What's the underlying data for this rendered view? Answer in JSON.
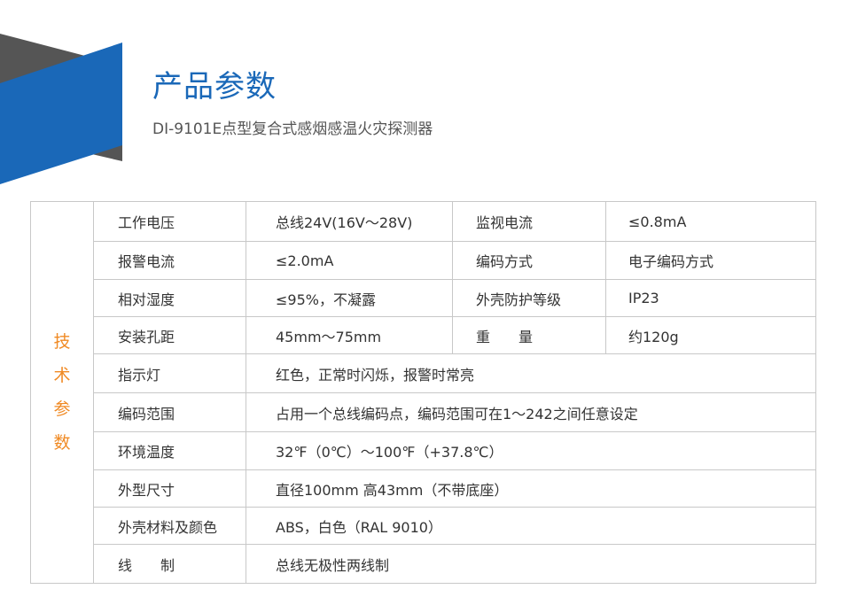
{
  "colors": {
    "brand_blue": "#1a68b8",
    "banner_gray": "#555555",
    "side_label": "#f08a24"
  },
  "header": {
    "title": "产品参数",
    "subtitle": "DI-9101E点型复合式感烟感温火灾探测器"
  },
  "table": {
    "side_label": [
      "技",
      "术",
      "参",
      "数"
    ],
    "rows": [
      {
        "label": "工作电压",
        "value": "总线24V(16V～28V)",
        "label2": "监视电流",
        "value2": "≤0.8mA"
      },
      {
        "label": "报警电流",
        "value": "≤2.0mA",
        "label2": "编码方式",
        "value2": "电子编码方式"
      },
      {
        "label": "相对湿度",
        "value": "≤95%，不凝露",
        "label2": "外壳防护等级",
        "value2": "IP23"
      },
      {
        "label": "安装孔距",
        "value": "45mm～75mm",
        "label2": "重　　量",
        "value2": "约120g"
      },
      {
        "label": "指示灯",
        "value": "红色，正常时闪烁，报警时常亮"
      },
      {
        "label": "编码范围",
        "value": "占用一个总线编码点，编码范围可在1～242之间任意设定"
      },
      {
        "label": "环境温度",
        "value": "32℉（0℃）～100℉（+37.8℃）"
      },
      {
        "label": "外型尺寸",
        "value": "直径100mm 高43mm（不带底座）"
      },
      {
        "label": "外壳材料及颜色",
        "value": "ABS，白色（RAL 9010）"
      },
      {
        "label": "线　　制",
        "value": "总线无极性两线制"
      }
    ]
  }
}
